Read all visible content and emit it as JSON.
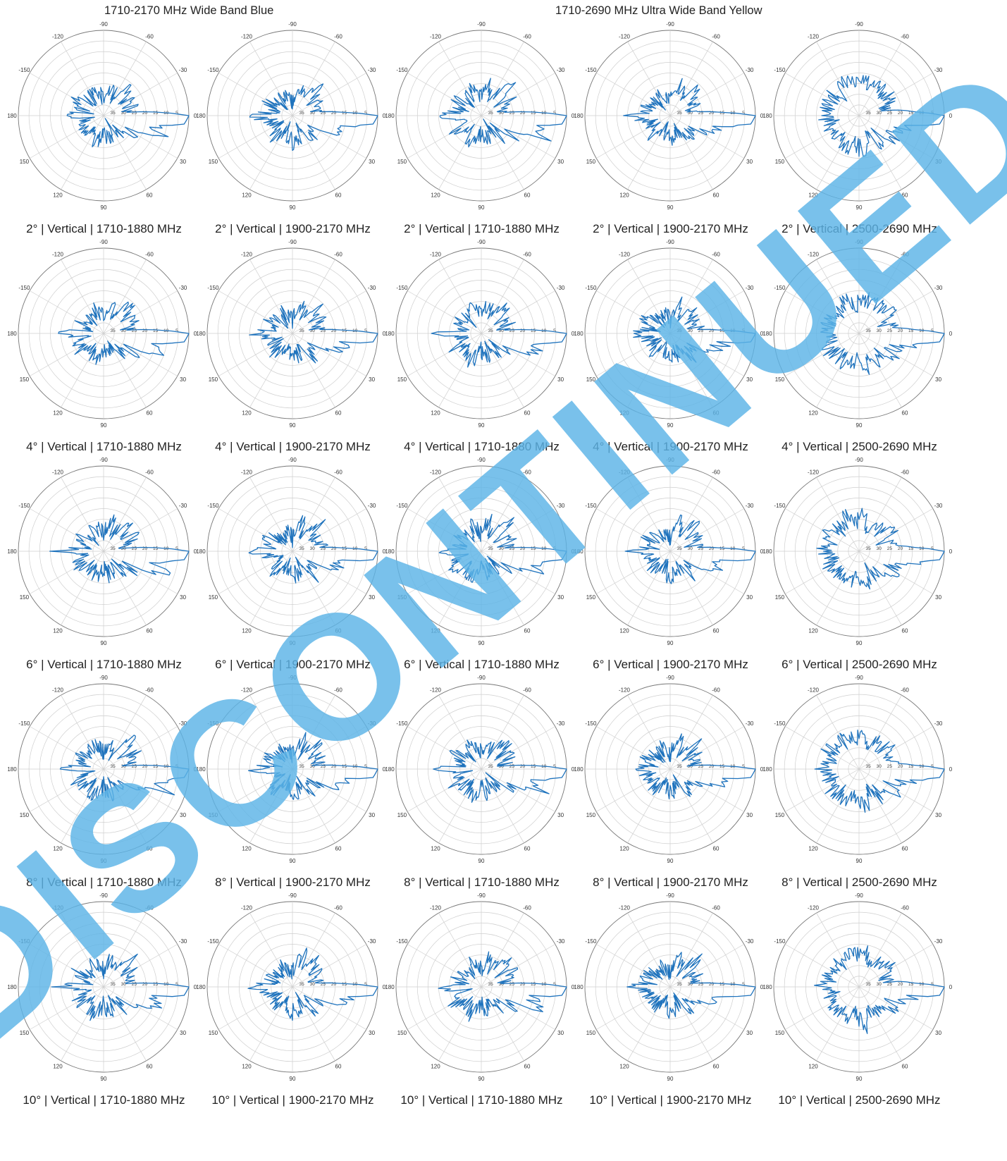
{
  "headers": {
    "left": "1710-2170 MHz Wide Band Blue",
    "right": "1710-2690 MHz Ultra Wide Band Yellow"
  },
  "watermark": {
    "text": "DISCONTINUED",
    "color": "#5cb3e6"
  },
  "style": {
    "trace_color": "#1f73bd",
    "grid_color": "#cfcfcf",
    "axis_color": "#777777"
  },
  "angle_labels": [
    "-90",
    "-60",
    "-30",
    "0",
    "30",
    "60",
    "90",
    "120",
    "150",
    "180",
    "-150",
    "-120"
  ],
  "radial_labels": [
    "5",
    "10",
    "15",
    "20",
    "25",
    "30",
    "35"
  ],
  "captions": [
    [
      "2°  |  Vertical  |  1710-1880 MHz",
      "2°  |  Vertical  |  1900-2170 MHz",
      "2°  |  Vertical  |  1710-1880 MHz",
      "2°  |  Vertical  |  1900-2170 MHz",
      "2°  |  Vertical  |  2500-2690 MHz"
    ],
    [
      "4°  |  Vertical  |  1710-1880 MHz",
      "4°  |  Vertical  |  1900-2170 MHz",
      "4°  |  Vertical  |  1710-1880 MHz",
      "4°  |  Vertical  |  1900-2170 MHz",
      "4°  |  Vertical  |  2500-2690 MHz"
    ],
    [
      "6°  |  Vertical  |  1710-1880 MHz",
      "6°  |  Vertical  |  1900-2170 MHz",
      "6°  |  Vertical  |  1710-1880 MHz",
      "6°  |  Vertical  |  1900-2170 MHz",
      "6°  |  Vertical  |  2500-2690 MHz"
    ],
    [
      "8°  |  Vertical  |  1710-1880 MHz",
      "8°  |  Vertical  |  1900-2170 MHz",
      "8°  |  Vertical  |  1710-1880 MHz",
      "8°  |  Vertical  |  1900-2170 MHz",
      "8°  |  Vertical  |  2500-2690 MHz"
    ],
    [
      "10°  |  Vertical  |  1710-1880 MHz",
      "10°  |  Vertical  |  1900-2170 MHz",
      "10°  |  Vertical  |  1710-1880 MHz",
      "10°  |  Vertical  |  1900-2170 MHz",
      "10°  |  Vertical  |  2500-2690 MHz"
    ]
  ],
  "chart_data": {
    "type": "polar",
    "grid": true,
    "angular_ticks_deg": [
      -150,
      -120,
      -90,
      -60,
      -30,
      0,
      30,
      60,
      90,
      120,
      150,
      180
    ],
    "radial_ticks": [
      5,
      10,
      15,
      20,
      25,
      30,
      35
    ],
    "rlim": [
      0,
      40
    ],
    "patterns": [
      {
        "name": "1710-1880 MHz Wide Band Blue",
        "points": [
          [
            0,
            0
          ],
          [
            6,
            2
          ],
          [
            10,
            13
          ],
          [
            16,
            14
          ],
          [
            20,
            9
          ],
          [
            28,
            26
          ],
          [
            35,
            22
          ],
          [
            40,
            33
          ],
          [
            50,
            27
          ],
          [
            60,
            34
          ],
          [
            75,
            28
          ],
          [
            90,
            32
          ],
          [
            110,
            27
          ],
          [
            130,
            31
          ],
          [
            150,
            26
          ],
          [
            170,
            32
          ],
          [
            180,
            19
          ],
          [
            -170,
            31
          ],
          [
            -150,
            27
          ],
          [
            -130,
            32
          ],
          [
            -110,
            28
          ],
          [
            -90,
            32
          ],
          [
            -75,
            26
          ],
          [
            -60,
            31
          ],
          [
            -45,
            21
          ],
          [
            -35,
            30
          ],
          [
            -27,
            24
          ],
          [
            -15,
            28
          ],
          [
            -8,
            29
          ],
          [
            -4,
            16
          ]
        ]
      },
      {
        "name": "1900-2170 MHz Wide Band Blue",
        "points": [
          [
            0,
            0
          ],
          [
            6,
            2
          ],
          [
            10,
            14
          ],
          [
            16,
            17
          ],
          [
            22,
            18
          ],
          [
            30,
            27
          ],
          [
            40,
            30
          ],
          [
            50,
            25
          ],
          [
            60,
            33
          ],
          [
            75,
            30
          ],
          [
            90,
            28
          ],
          [
            110,
            33
          ],
          [
            130,
            28
          ],
          [
            150,
            32
          ],
          [
            170,
            29
          ],
          [
            180,
            22
          ],
          [
            -170,
            31
          ],
          [
            -150,
            28
          ],
          [
            -130,
            33
          ],
          [
            -110,
            30
          ],
          [
            -90,
            34
          ],
          [
            -70,
            25
          ],
          [
            -60,
            31
          ],
          [
            -45,
            22
          ],
          [
            -35,
            29
          ],
          [
            -25,
            26
          ],
          [
            -15,
            29
          ],
          [
            -8,
            27
          ],
          [
            -4,
            17
          ]
        ]
      },
      {
        "name": "2500-2690 MHz Ultra Wide Band Yellow",
        "points": [
          [
            0,
            0
          ],
          [
            6,
            2
          ],
          [
            10,
            13
          ],
          [
            16,
            18
          ],
          [
            25,
            24
          ],
          [
            35,
            20
          ],
          [
            45,
            28
          ],
          [
            55,
            24
          ],
          [
            65,
            30
          ],
          [
            80,
            22
          ],
          [
            95,
            27
          ],
          [
            110,
            25
          ],
          [
            130,
            26
          ],
          [
            150,
            24
          ],
          [
            170,
            27
          ],
          [
            180,
            23
          ],
          [
            -165,
            26
          ],
          [
            -150,
            24
          ],
          [
            -130,
            27
          ],
          [
            -110,
            23
          ],
          [
            -95,
            26
          ],
          [
            -80,
            23
          ],
          [
            -70,
            27
          ],
          [
            -55,
            24
          ],
          [
            -45,
            26
          ],
          [
            -30,
            22
          ],
          [
            -20,
            27
          ],
          [
            -10,
            25
          ],
          [
            -4,
            14
          ]
        ]
      }
    ],
    "cells": [
      [
        0,
        1,
        0,
        1,
        2
      ],
      [
        0,
        1,
        0,
        1,
        2
      ],
      [
        0,
        1,
        0,
        1,
        2
      ],
      [
        0,
        1,
        0,
        1,
        2
      ],
      [
        0,
        1,
        0,
        1,
        2
      ]
    ]
  }
}
